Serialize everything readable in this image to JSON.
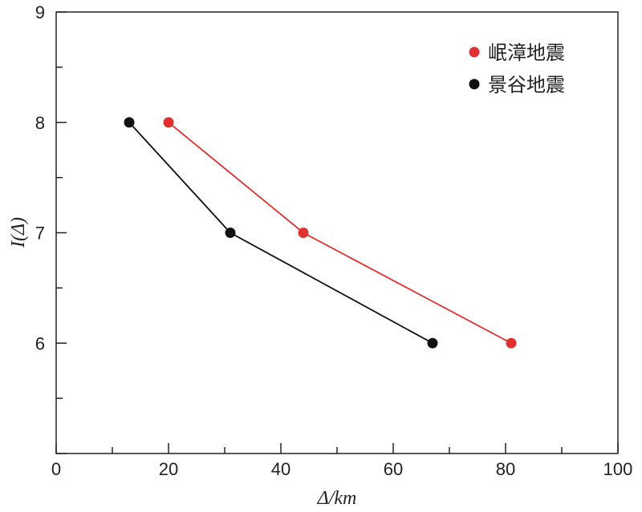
{
  "chart_data": {
    "type": "line",
    "xlabel": "Δ/km",
    "ylabel": "I(Δ)",
    "xlim": [
      0,
      100
    ],
    "ylim": [
      5,
      9
    ],
    "xticks": [
      0,
      20,
      40,
      60,
      80,
      100
    ],
    "yticks": [
      6,
      7,
      8,
      9
    ],
    "grid": false,
    "legend_position": "top-right",
    "series": [
      {
        "name": "岷漳地震",
        "color": "#e03030",
        "x": [
          20,
          44,
          81
        ],
        "y": [
          8,
          7,
          6
        ]
      },
      {
        "name": "景谷地震",
        "color": "#111111",
        "x": [
          13,
          31,
          67
        ],
        "y": [
          8,
          7,
          6
        ]
      }
    ]
  }
}
